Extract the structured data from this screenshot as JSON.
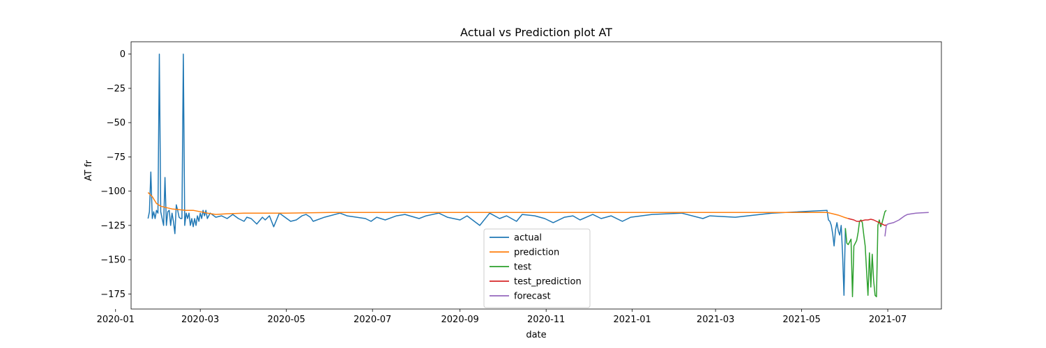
{
  "chart_data": {
    "type": "line",
    "title": "Actual vs Prediction plot AT",
    "xlabel": "date",
    "ylabel": "AT fr",
    "xlim": [
      "2020-01-12",
      "2021-08-08"
    ],
    "ylim": [
      -186,
      9
    ],
    "x_ticks": [
      "2020-01",
      "2020-03",
      "2020-05",
      "2020-07",
      "2020-09",
      "2020-11",
      "2021-01",
      "2021-03",
      "2021-05",
      "2021-07"
    ],
    "x_tick_dates": [
      "2020-01-01",
      "2020-03-01",
      "2020-05-01",
      "2020-07-01",
      "2020-09-01",
      "2020-11-01",
      "2021-01-01",
      "2021-03-01",
      "2021-05-01",
      "2021-07-01"
    ],
    "y_ticks": [
      0,
      -25,
      -50,
      -75,
      -100,
      -125,
      -150,
      -175
    ],
    "y_tick_labels": [
      "0",
      "−25",
      "−50",
      "−75",
      "−100",
      "−125",
      "−150",
      "−175"
    ],
    "grid": false,
    "legend": "bottom-center",
    "series": [
      {
        "name": "actual",
        "color": "#1f77b4",
        "x": [
          "2020-01-24",
          "2020-01-25",
          "2020-01-26",
          "2020-01-27",
          "2020-01-28",
          "2020-01-29",
          "2020-01-30",
          "2020-01-31",
          "2020-02-01",
          "2020-02-02",
          "2020-02-03",
          "2020-02-04",
          "2020-02-05",
          "2020-02-06",
          "2020-02-07",
          "2020-02-08",
          "2020-02-09",
          "2020-02-10",
          "2020-02-11",
          "2020-02-12",
          "2020-02-13",
          "2020-02-14",
          "2020-02-15",
          "2020-02-16",
          "2020-02-17",
          "2020-02-18",
          "2020-02-19",
          "2020-02-20",
          "2020-02-21",
          "2020-02-22",
          "2020-02-23",
          "2020-02-24",
          "2020-02-25",
          "2020-02-26",
          "2020-02-27",
          "2020-02-28",
          "2020-02-29",
          "2020-03-01",
          "2020-03-02",
          "2020-03-03",
          "2020-03-04",
          "2020-03-05",
          "2020-03-06",
          "2020-03-08",
          "2020-03-12",
          "2020-03-16",
          "2020-03-20",
          "2020-03-24",
          "2020-03-28",
          "2020-04-01",
          "2020-04-03",
          "2020-04-06",
          "2020-04-10",
          "2020-04-14",
          "2020-04-16",
          "2020-04-19",
          "2020-04-22",
          "2020-04-26",
          "2020-04-30",
          "2020-05-04",
          "2020-05-08",
          "2020-05-12",
          "2020-05-15",
          "2020-05-18",
          "2020-05-20",
          "2020-05-28",
          "2020-06-08",
          "2020-06-13",
          "2020-06-26",
          "2020-06-30",
          "2020-07-04",
          "2020-07-10",
          "2020-07-18",
          "2020-07-24",
          "2020-08-03",
          "2020-08-08",
          "2020-08-17",
          "2020-08-23",
          "2020-09-01",
          "2020-09-06",
          "2020-09-15",
          "2020-09-22",
          "2020-09-29",
          "2020-10-04",
          "2020-10-11",
          "2020-10-15",
          "2020-10-24",
          "2020-10-31",
          "2020-11-06",
          "2020-11-14",
          "2020-11-20",
          "2020-11-25",
          "2020-12-04",
          "2020-12-10",
          "2020-12-17",
          "2020-12-25",
          "2020-12-31",
          "2021-01-15",
          "2021-02-05",
          "2021-02-20",
          "2021-02-25",
          "2021-03-15",
          "2021-04-10",
          "2021-05-19",
          "2021-05-20",
          "2021-05-21",
          "2021-05-22",
          "2021-05-23",
          "2021-05-24",
          "2021-05-25",
          "2021-05-26",
          "2021-05-27",
          "2021-05-28",
          "2021-05-29",
          "2021-05-30",
          "2021-05-31",
          "2021-06-01"
        ],
        "values": [
          -120,
          -115,
          -86,
          -120,
          -115,
          -120,
          -114,
          -116,
          0,
          -115,
          -120,
          -125,
          -90,
          -125,
          -115,
          -114,
          -125,
          -116,
          -122,
          -131,
          -110,
          -114,
          -119,
          -120,
          -120,
          0,
          -125,
          -116,
          -120,
          -116,
          -125,
          -120,
          -126,
          -120,
          -125,
          -118,
          -122,
          -116,
          -120,
          -114,
          -118,
          -114,
          -120,
          -116,
          -119,
          -118,
          -120,
          -117,
          -120,
          -122,
          -119,
          -120,
          -124,
          -119,
          -121,
          -118,
          -126,
          -116,
          -119,
          -122,
          -121,
          -118,
          -117,
          -119,
          -122,
          -119,
          -116,
          -118,
          -120,
          -122,
          -119,
          -121,
          -118,
          -117,
          -120,
          -118,
          -116,
          -119,
          -121,
          -118,
          -125,
          -116,
          -120,
          -118,
          -122,
          -117,
          -118,
          -120,
          -123,
          -119,
          -118,
          -121,
          -117,
          -120,
          -118,
          -122,
          -119,
          -117,
          -116,
          -120,
          -118,
          -119,
          -116,
          -114,
          -121,
          -122,
          -125,
          -131,
          -140,
          -128,
          -123,
          -129,
          -132,
          -125,
          -146,
          -176,
          -127
        ]
      },
      {
        "name": "prediction",
        "color": "#ff7f0e",
        "x": [
          "2020-01-24",
          "2020-01-27",
          "2020-01-30",
          "2020-02-02",
          "2020-02-06",
          "2020-02-10",
          "2020-02-15",
          "2020-02-20",
          "2020-02-25",
          "2020-03-01",
          "2020-03-06",
          "2020-03-12",
          "2020-03-20",
          "2020-04-01",
          "2020-05-01",
          "2020-06-01",
          "2020-07-01",
          "2020-09-01",
          "2020-11-01",
          "2021-01-01",
          "2021-03-01",
          "2021-04-15",
          "2021-05-19",
          "2021-05-23",
          "2021-05-27",
          "2021-05-31",
          "2021-06-03"
        ],
        "values": [
          -101,
          -104,
          -109,
          -111,
          -112,
          -113,
          -113.5,
          -114,
          -114,
          -115,
          -116,
          -117,
          -116.5,
          -116,
          -116,
          -115.5,
          -115.5,
          -115.5,
          -115.5,
          -115.5,
          -115.5,
          -115.5,
          -115.5,
          -116.5,
          -117.5,
          -119,
          -120
        ]
      },
      {
        "name": "test",
        "color": "#2ca02c",
        "x": [
          "2021-06-01",
          "2021-06-02",
          "2021-06-03",
          "2021-06-04",
          "2021-06-05",
          "2021-06-06",
          "2021-06-07",
          "2021-06-08",
          "2021-06-09",
          "2021-06-10",
          "2021-06-11",
          "2021-06-12",
          "2021-06-13",
          "2021-06-14",
          "2021-06-15",
          "2021-06-16",
          "2021-06-17",
          "2021-06-18",
          "2021-06-19",
          "2021-06-20",
          "2021-06-21",
          "2021-06-22",
          "2021-06-23",
          "2021-06-24",
          "2021-06-25",
          "2021-06-26",
          "2021-06-27",
          "2021-06-28",
          "2021-06-29",
          "2021-06-30"
        ],
        "values": [
          -127,
          -138,
          -139,
          -137,
          -135,
          -177,
          -140,
          -138,
          -136,
          -130,
          -122,
          -121,
          -123,
          -132,
          -140,
          -158,
          -176,
          -145,
          -170,
          -146,
          -165,
          -176,
          -177,
          -125,
          -121,
          -126,
          -123,
          -119,
          -115,
          -114
        ]
      },
      {
        "name": "test_prediction",
        "color": "#d62728",
        "x": [
          "2021-06-03",
          "2021-06-05",
          "2021-06-07",
          "2021-06-09",
          "2021-06-11",
          "2021-06-13",
          "2021-06-15",
          "2021-06-17",
          "2021-06-19",
          "2021-06-21",
          "2021-06-23",
          "2021-06-25",
          "2021-06-27",
          "2021-06-29",
          "2021-06-30"
        ],
        "values": [
          -120,
          -120.5,
          -121,
          -122,
          -122,
          -121.5,
          -121,
          -121,
          -120.5,
          -121,
          -122,
          -123,
          -124,
          -125,
          -124.5
        ]
      },
      {
        "name": "forecast",
        "color": "#9467bd",
        "x": [
          "2021-06-29",
          "2021-06-30",
          "2021-07-01",
          "2021-07-03",
          "2021-07-05",
          "2021-07-07",
          "2021-07-09",
          "2021-07-11",
          "2021-07-13",
          "2021-07-15",
          "2021-07-18",
          "2021-07-21",
          "2021-07-25",
          "2021-07-30"
        ],
        "values": [
          -133,
          -125,
          -124,
          -123.5,
          -123,
          -122,
          -121,
          -119.5,
          -118,
          -117,
          -116.5,
          -116,
          -115.8,
          -115.5
        ]
      }
    ]
  }
}
